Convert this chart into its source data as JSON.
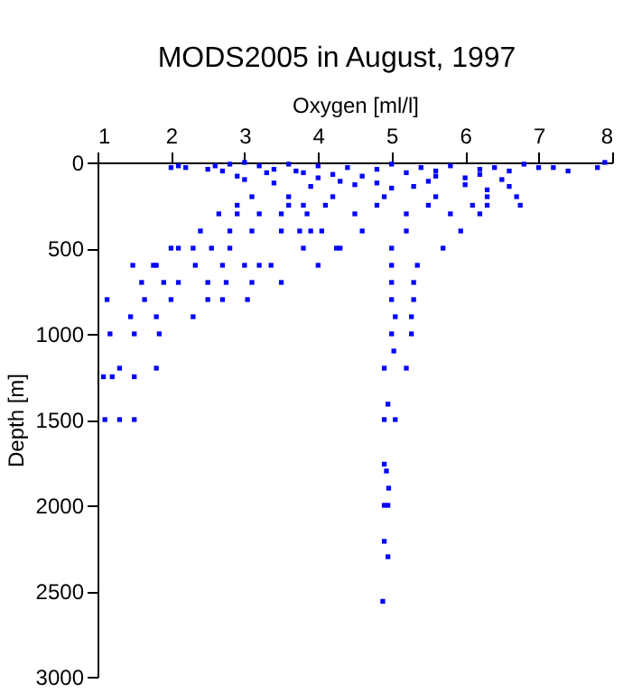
{
  "chart_data": {
    "type": "scatter",
    "title": "MODS2005 in August, 1997",
    "xlabel": "Oxygen [ml/l]",
    "ylabel": "Depth [m]",
    "xlim": [
      1,
      8
    ],
    "xticks": [
      1,
      2,
      3,
      4,
      5,
      6,
      7,
      8
    ],
    "ylim": [
      3000,
      0
    ],
    "yticks": [
      0,
      500,
      1000,
      1500,
      2000,
      2500,
      3000
    ],
    "grid": false,
    "legend": false,
    "marker": "square",
    "series": [
      {
        "color": "#0000ff",
        "x": [
          2.0,
          2.1,
          2.2,
          2.5,
          2.6,
          2.7,
          2.8,
          3.0,
          3.2,
          3.4,
          3.6,
          3.8,
          4.0,
          4.2,
          4.4,
          4.6,
          4.8,
          5.0,
          5.2,
          5.4,
          5.6,
          5.8,
          6.0,
          6.2,
          6.4,
          6.6,
          6.8,
          7.0,
          7.2,
          7.4,
          7.8,
          7.9,
          3.0,
          3.4,
          3.9,
          4.5,
          5.0,
          5.5,
          6.0,
          6.3,
          6.6,
          3.3,
          4.0,
          4.8,
          5.6,
          6.5,
          2.9,
          3.7,
          4.3,
          5.3,
          6.2,
          3.1,
          3.6,
          4.2,
          4.9,
          5.6,
          6.3,
          6.7,
          2.9,
          3.6,
          3.8,
          4.1,
          4.8,
          5.5,
          6.1,
          6.3,
          6.75,
          2.65,
          2.9,
          3.2,
          3.5,
          3.85,
          4.5,
          5.2,
          5.8,
          6.2,
          2.4,
          2.8,
          3.1,
          3.5,
          3.75,
          3.9,
          4.05,
          4.6,
          5.2,
          5.94,
          2.0,
          2.1,
          2.3,
          2.55,
          2.8,
          3.8,
          4.25,
          4.3,
          5.0,
          5.7,
          1.48,
          1.76,
          1.8,
          2.33,
          2.7,
          3.0,
          3.2,
          3.36,
          4.0,
          5.0,
          5.35,
          1.6,
          1.9,
          2.1,
          2.5,
          2.75,
          3.1,
          3.5,
          5.0,
          5.3,
          1.13,
          1.64,
          2.0,
          2.5,
          2.7,
          3.04,
          5.0,
          5.3,
          1.45,
          1.8,
          2.3,
          5.05,
          5.27,
          1.17,
          1.5,
          1.84,
          5.0,
          5.27,
          5.03,
          1.3,
          1.8,
          4.9,
          5.2,
          1.08,
          1.2,
          1.5,
          4.95,
          1.1,
          1.3,
          1.5,
          4.9,
          5.05,
          4.9,
          4.93,
          4.96,
          4.9,
          4.95,
          4.9,
          4.95,
          4.88
        ],
        "values": [
          30,
          20,
          30,
          40,
          20,
          50,
          10,
          0,
          20,
          40,
          10,
          60,
          20,
          70,
          30,
          80,
          40,
          10,
          60,
          30,
          50,
          20,
          90,
          40,
          30,
          50,
          10,
          30,
          30,
          50,
          30,
          0,
          100,
          120,
          140,
          130,
          150,
          110,
          130,
          160,
          140,
          60,
          90,
          120,
          80,
          100,
          80,
          50,
          110,
          140,
          70,
          200,
          200,
          200,
          200,
          200,
          200,
          200,
          250,
          250,
          250,
          250,
          250,
          250,
          250,
          250,
          250,
          300,
          300,
          300,
          300,
          300,
          300,
          300,
          300,
          300,
          400,
          400,
          400,
          400,
          400,
          400,
          400,
          400,
          400,
          400,
          500,
          500,
          500,
          500,
          500,
          500,
          500,
          500,
          500,
          500,
          600,
          600,
          600,
          600,
          600,
          600,
          600,
          600,
          600,
          600,
          600,
          700,
          700,
          700,
          700,
          700,
          700,
          700,
          700,
          700,
          800,
          800,
          800,
          800,
          800,
          800,
          800,
          800,
          900,
          900,
          900,
          900,
          900,
          1000,
          1000,
          1000,
          1000,
          1000,
          1100,
          1200,
          1200,
          1200,
          1200,
          1250,
          1250,
          1250,
          1410,
          1500,
          1500,
          1500,
          1500,
          1500,
          1760,
          1800,
          1900,
          2000,
          2000,
          2210,
          2300,
          2560
        ]
      }
    ]
  }
}
